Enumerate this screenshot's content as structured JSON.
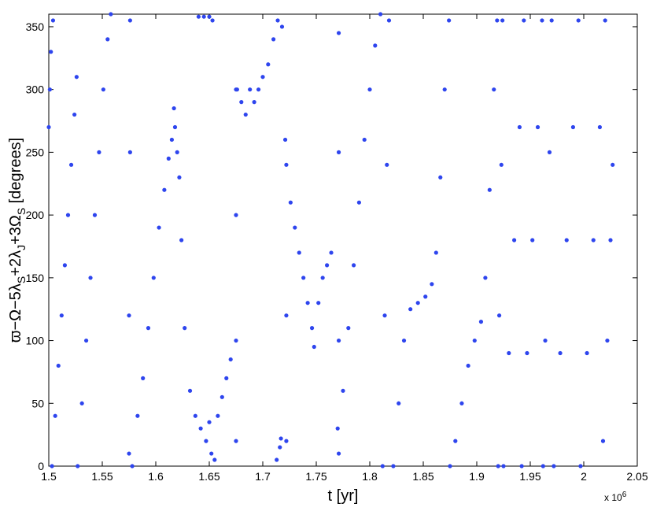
{
  "chart_data": {
    "type": "scatter",
    "xlabel": "t [yr]",
    "ylabel": [
      "ϖ−Ω−5λ",
      "S",
      "+2λ",
      "J",
      "+3Ω",
      "S",
      " [degrees]"
    ],
    "x_multiplier": [
      "x 10",
      "6"
    ],
    "color": "#2e45ee",
    "xlim": [
      1.5,
      2.05
    ],
    "xticks": [
      1.5,
      1.55,
      1.6,
      1.65,
      1.7,
      1.75,
      1.8,
      1.85,
      1.9,
      1.95,
      2,
      2.05
    ],
    "ylim": [
      0,
      360
    ],
    "yticks": [
      0,
      50,
      100,
      150,
      200,
      250,
      300,
      350
    ],
    "x": [
      1.5,
      1.501,
      1.502,
      1.504,
      1.503,
      1.506,
      1.509,
      1.512,
      1.515,
      1.518,
      1.521,
      1.524,
      1.526,
      1.527,
      1.531,
      1.535,
      1.539,
      1.543,
      1.547,
      1.551,
      1.555,
      1.558,
      1.575,
      1.575,
      1.576,
      1.576,
      1.578,
      1.583,
      1.588,
      1.593,
      1.598,
      1.603,
      1.608,
      1.612,
      1.615,
      1.618,
      1.62,
      1.617,
      1.622,
      1.624,
      1.627,
      1.632,
      1.637,
      1.642,
      1.647,
      1.652,
      1.655,
      1.65,
      1.658,
      1.662,
      1.666,
      1.67,
      1.64,
      1.645,
      1.65,
      1.653,
      1.675,
      1.675,
      1.675,
      1.675,
      1.676,
      1.68,
      1.684,
      1.688,
      1.692,
      1.696,
      1.7,
      1.705,
      1.71,
      1.714,
      1.718,
      1.713,
      1.716,
      1.717,
      1.722,
      1.722,
      1.721,
      1.722,
      1.726,
      1.73,
      1.734,
      1.738,
      1.742,
      1.746,
      1.748,
      1.752,
      1.756,
      1.76,
      1.764,
      1.771,
      1.771,
      1.771,
      1.771,
      1.77,
      1.775,
      1.78,
      1.785,
      1.79,
      1.795,
      1.8,
      1.805,
      1.81,
      1.812,
      1.814,
      1.816,
      1.818,
      1.822,
      1.827,
      1.832,
      1.838,
      1.845,
      1.852,
      1.858,
      1.862,
      1.866,
      1.87,
      1.874,
      1.875,
      1.88,
      1.886,
      1.892,
      1.898,
      1.904,
      1.908,
      1.912,
      1.916,
      1.919,
      1.92,
      1.921,
      1.923,
      1.924,
      1.925,
      1.93,
      1.935,
      1.94,
      1.944,
      1.942,
      1.947,
      1.952,
      1.957,
      1.961,
      1.962,
      1.964,
      1.968,
      1.97,
      1.972,
      1.978,
      1.984,
      1.99,
      1.995,
      1.997,
      2.003,
      2.009,
      2.015,
      2.02,
      2.018,
      2.022,
      2.025,
      2.027
    ],
    "values": [
      270,
      300,
      330,
      355,
      0,
      40,
      80,
      120,
      160,
      200,
      240,
      280,
      310,
      0,
      50,
      100,
      150,
      200,
      250,
      300,
      340,
      360,
      10,
      120,
      250,
      355,
      0,
      40,
      70,
      110,
      150,
      190,
      220,
      245,
      260,
      270,
      250,
      285,
      230,
      180,
      110,
      60,
      40,
      30,
      20,
      10,
      5,
      35,
      40,
      55,
      70,
      85,
      358,
      358,
      358,
      355,
      20,
      100,
      200,
      300,
      300,
      290,
      280,
      300,
      290,
      300,
      310,
      320,
      340,
      355,
      350,
      5,
      15,
      22,
      20,
      120,
      260,
      240,
      210,
      190,
      170,
      150,
      130,
      110,
      95,
      130,
      150,
      160,
      170,
      10,
      100,
      250,
      345,
      30,
      60,
      110,
      160,
      210,
      260,
      300,
      335,
      360,
      0,
      120,
      240,
      355,
      0,
      50,
      100,
      125,
      130,
      135,
      145,
      170,
      230,
      300,
      355,
      0,
      20,
      50,
      80,
      100,
      115,
      150,
      220,
      300,
      355,
      0,
      120,
      240,
      355,
      0,
      90,
      180,
      270,
      355,
      0,
      90,
      180,
      270,
      355,
      0,
      100,
      250,
      355,
      0,
      90,
      180,
      270,
      355,
      0,
      90,
      180,
      270,
      355,
      20,
      100,
      180,
      240
    ]
  }
}
